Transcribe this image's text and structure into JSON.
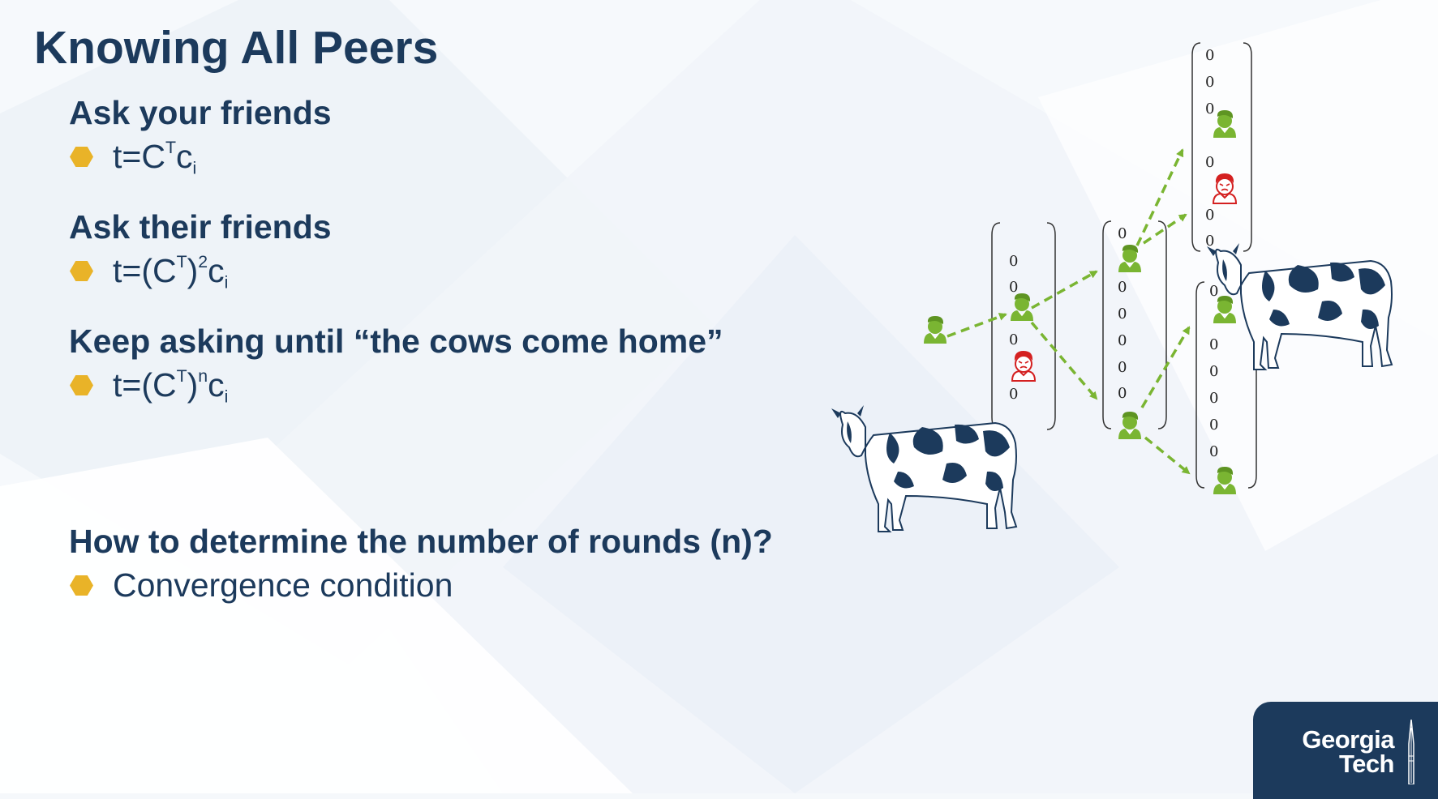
{
  "slide": {
    "title": "Knowing All Peers",
    "sections": [
      {
        "heading": "Ask your friends",
        "formula": {
          "base": "t=C",
          "sup1": "T",
          "mid": "c",
          "sub": "i",
          "paren": false
        }
      },
      {
        "heading": "Ask their friends",
        "formula": {
          "pre": "t=(C",
          "sup1": "T",
          "post": ")",
          "sup2": "2",
          "mid": "c",
          "sub": "i"
        }
      },
      {
        "heading": "Keep asking until “the cows come home”",
        "formula": {
          "pre": "t=(C",
          "sup1": "T",
          "post": ")",
          "sup2": "n",
          "mid": "c",
          "sub": "i"
        }
      },
      {
        "heading": "How to determine the number of rounds (n)?",
        "bullet": "Convergence condition"
      }
    ]
  },
  "diagram": {
    "zero": "0",
    "vectors": [
      {
        "entries": [
          "0",
          "0",
          "peer",
          "malicious",
          "0"
        ]
      },
      {
        "entries": [
          "0",
          "peer",
          "0",
          "0",
          "0",
          "0",
          "0",
          "peer"
        ]
      },
      {
        "entries": [
          "0",
          "0",
          "0",
          "peer",
          "0",
          "malicious",
          "0",
          "0"
        ]
      },
      {
        "entries": [
          "0",
          "peer",
          "0",
          "0",
          "0",
          "0",
          "0",
          "peer"
        ]
      }
    ],
    "icons": {
      "peer": "person-icon",
      "malicious": "angry-person-icon",
      "animal": "cow-icon"
    },
    "colors": {
      "peer": "#7ab532",
      "malicious": "#d42020",
      "arrow": "#7ab532",
      "hex_bullet": "#e9b328",
      "navy": "#1c3a5c"
    }
  },
  "logo": {
    "line1": "Georgia",
    "line2": "Tech"
  }
}
